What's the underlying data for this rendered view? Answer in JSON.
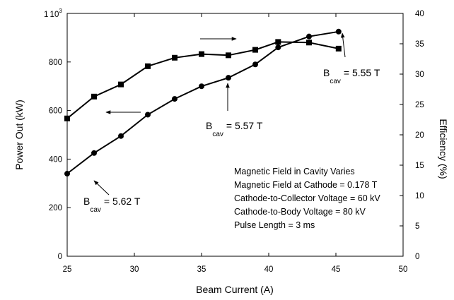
{
  "chart_data": {
    "type": "line",
    "xlabel": "Beam Current (A)",
    "ylabel_left": "Power Out (kW)",
    "ylabel_right": "Efficiency (%)",
    "xlim": [
      25,
      50
    ],
    "ylim_left": [
      0,
      1000
    ],
    "ylim_right": [
      0,
      40
    ],
    "x_ticks": [
      "25",
      "30",
      "35",
      "40",
      "45",
      "50"
    ],
    "y_left_ticks": [
      "0",
      "200",
      "400",
      "600",
      "800"
    ],
    "y_left_top_tick": {
      "mantissa": "1",
      "exponent": "10",
      "power": "3"
    },
    "y_right_ticks": [
      "0",
      "5",
      "10",
      "15",
      "20",
      "25",
      "30",
      "35",
      "40"
    ],
    "series": [
      {
        "axis": "left",
        "marker": "circle",
        "x": [
          25,
          27,
          29,
          31,
          33,
          35,
          37,
          39,
          40.7,
          43,
          45.2
        ],
        "y": [
          340,
          425,
          495,
          583,
          648,
          700,
          735,
          790,
          860,
          905,
          925
        ]
      },
      {
        "axis": "right",
        "marker": "square",
        "x": [
          25,
          27,
          29,
          31,
          33,
          35,
          37,
          39,
          40.7,
          43,
          45.2
        ],
        "y": [
          22.7,
          26.3,
          28.3,
          31.3,
          32.7,
          33.3,
          33.1,
          34.0,
          35.3,
          35.2,
          34.2
        ]
      }
    ],
    "annotations": [
      {
        "main": "B",
        "sub": "cav",
        "value": "= 5.62 T"
      },
      {
        "main": "B",
        "sub": "cav",
        "value": "= 5.57 T"
      },
      {
        "main": "B",
        "sub": "cav",
        "value": "= 5.55 T"
      }
    ],
    "notes": [
      "Magnetic Field in Cavity  Varies",
      "Magnetic Field at Cathode = 0.178 T",
      "Cathode-to-Collector Voltage = 60 kV",
      "Cathode-to-Body Voltage = 80 kV",
      "Pulse Length = 3 ms"
    ]
  }
}
